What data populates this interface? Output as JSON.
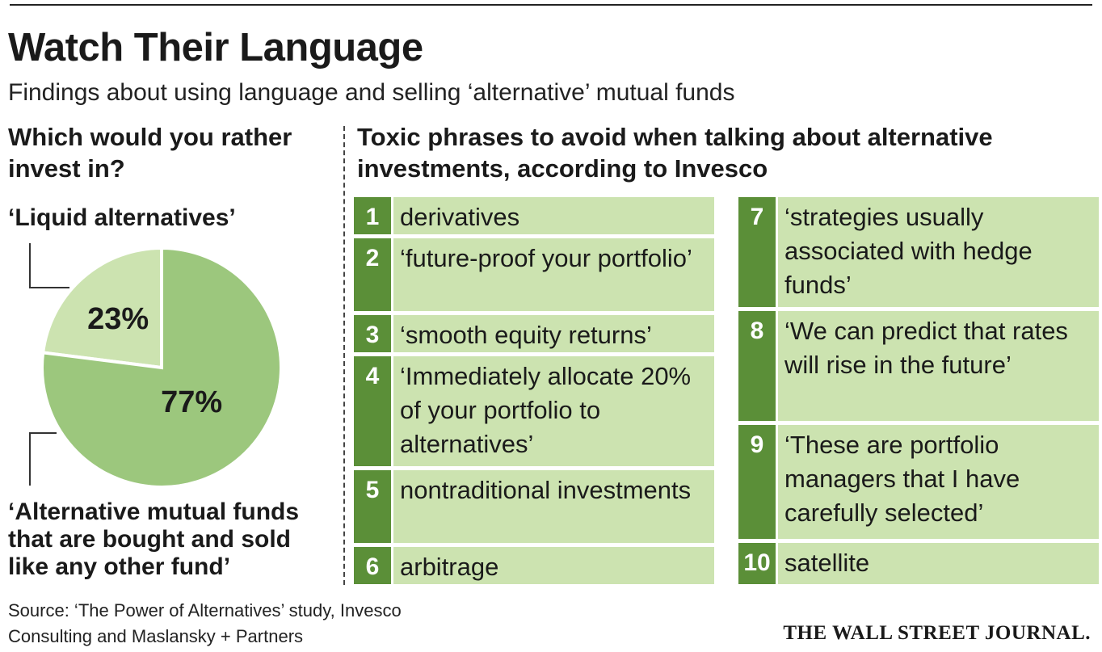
{
  "header": {
    "title": "Watch Their Language",
    "subtitle": "Findings about using  language and selling ‘alternative’ mutual funds"
  },
  "left_panel": {
    "heading": "Which would you rather invest in?",
    "liquid_label": "‘Liquid alternatives’",
    "alternative_label": "‘Alternative mutual funds that are bought and sold like any other fund’"
  },
  "right_panel": {
    "heading": "Toxic phrases to avoid when talking about alternative investments, according to Invesco",
    "phrases": [
      {
        "num": "1",
        "text": "derivatives"
      },
      {
        "num": "2",
        "text": "‘future-proof your portfolio’"
      },
      {
        "num": "3",
        "text": "‘smooth equity returns’"
      },
      {
        "num": "4",
        "text": "‘Immediately allocate 20% of your portfolio to alternatives’"
      },
      {
        "num": "5",
        "text": "nontraditional investments"
      },
      {
        "num": "6",
        "text": "arbitrage"
      },
      {
        "num": "7",
        "text": "‘strategies usually associated with hedge funds’"
      },
      {
        "num": "8",
        "text": "‘We can predict that rates will rise in the future’"
      },
      {
        "num": "9",
        "text": "‘These are portfolio managers that I have carefully selected’"
      },
      {
        "num": "10",
        "text": "satellite"
      }
    ]
  },
  "chart_data": {
    "type": "pie",
    "slices": [
      {
        "label": "‘Liquid alternatives’",
        "value": 23,
        "display": "23%",
        "color": "#cce3b0"
      },
      {
        "label": "‘Alternative mutual funds that are bought and sold like any other fund’",
        "value": 77,
        "display": "77%",
        "color": "#9cc77d"
      }
    ],
    "edge_color": "#ffffff"
  },
  "footer": {
    "source": "Source: ‘The Power of Alternatives’ study, Invesco Consulting and Maslansky + Partners",
    "brand": "THE WALL STREET JOURNAL."
  }
}
